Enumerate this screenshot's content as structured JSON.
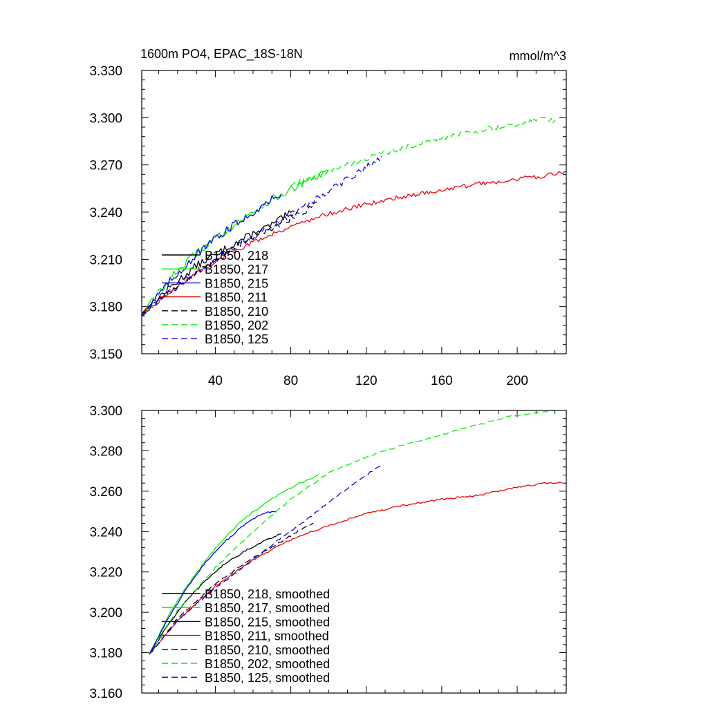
{
  "chart_data": [
    {
      "type": "line",
      "title": "1600m PO4, EPAC_18S-18N",
      "units": "mmol/m^3",
      "xlabel": "",
      "ylabel": "",
      "xlim": [
        1,
        226
      ],
      "ylim": [
        3.15,
        3.33
      ],
      "xticks": [
        40,
        80,
        120,
        160,
        200
      ],
      "xtick_labels": [
        "40",
        "80",
        "120",
        "160",
        "200"
      ],
      "yticks": [
        3.15,
        3.18,
        3.21,
        3.24,
        3.27,
        3.3,
        3.33
      ],
      "ytick_labels": [
        "3.150",
        "3.180",
        "3.210",
        "3.240",
        "3.270",
        "3.300",
        "3.330"
      ],
      "grid": false,
      "legend_position": "lower-left",
      "series": [
        {
          "name": "B1850, 218",
          "color": "#000000",
          "dash": "solid",
          "noise": 0.0024,
          "points": [
            [
              1,
              3.175
            ],
            [
              10,
              3.186
            ],
            [
              20,
              3.196
            ],
            [
              30,
              3.206
            ],
            [
              40,
              3.213
            ],
            [
              50,
              3.22
            ],
            [
              60,
              3.226
            ],
            [
              70,
              3.232
            ],
            [
              78,
              3.238
            ],
            [
              82,
              3.24
            ]
          ]
        },
        {
          "name": "B1850, 217",
          "color": "#00ee00",
          "dash": "solid",
          "noise": 0.0024,
          "points": [
            [
              1,
              3.175
            ],
            [
              10,
              3.189
            ],
            [
              20,
              3.203
            ],
            [
              30,
              3.214
            ],
            [
              40,
              3.223
            ],
            [
              50,
              3.232
            ],
            [
              60,
              3.24
            ],
            [
              70,
              3.248
            ],
            [
              80,
              3.254
            ],
            [
              90,
              3.26
            ],
            [
              100,
              3.266
            ]
          ]
        },
        {
          "name": "B1850, 215",
          "color": "#0000ee",
          "dash": "solid",
          "noise": 0.0024,
          "points": [
            [
              1,
              3.175
            ],
            [
              10,
              3.188
            ],
            [
              20,
              3.201
            ],
            [
              30,
              3.213
            ],
            [
              40,
              3.223
            ],
            [
              50,
              3.232
            ],
            [
              60,
              3.24
            ],
            [
              70,
              3.248
            ],
            [
              75,
              3.252
            ]
          ]
        },
        {
          "name": "B1850, 211",
          "color": "#ee0000",
          "dash": "solid",
          "noise": 0.0014,
          "points": [
            [
              1,
              3.175
            ],
            [
              20,
              3.193
            ],
            [
              40,
              3.209
            ],
            [
              60,
              3.221
            ],
            [
              80,
              3.231
            ],
            [
              100,
              3.239
            ],
            [
              120,
              3.245
            ],
            [
              140,
              3.25
            ],
            [
              160,
              3.254
            ],
            [
              180,
              3.258
            ],
            [
              200,
              3.261
            ],
            [
              220,
              3.264
            ],
            [
              226,
              3.265
            ]
          ]
        },
        {
          "name": "B1850, 210",
          "color": "#000000",
          "dash": "dashed",
          "noise": 0.0024,
          "points": [
            [
              1,
              3.175
            ],
            [
              20,
              3.194
            ],
            [
              40,
              3.21
            ],
            [
              60,
              3.224
            ],
            [
              80,
              3.236
            ],
            [
              90,
              3.243
            ],
            [
              94,
              3.246
            ]
          ]
        },
        {
          "name": "B1850, 202",
          "color": "#00ee00",
          "dash": "dashed",
          "noise": 0.0016,
          "points": [
            [
              80,
              3.257
            ],
            [
              100,
              3.266
            ],
            [
              120,
              3.274
            ],
            [
              140,
              3.281
            ],
            [
              160,
              3.287
            ],
            [
              180,
              3.292
            ],
            [
              200,
              3.296
            ],
            [
              215,
              3.3
            ],
            [
              220,
              3.298
            ]
          ]
        },
        {
          "name": "B1850, 125",
          "color": "#0000ee",
          "dash": "dashed",
          "noise": 0.0022,
          "points": [
            [
              1,
              3.175
            ],
            [
              20,
              3.193
            ],
            [
              40,
              3.21
            ],
            [
              60,
              3.224
            ],
            [
              80,
              3.238
            ],
            [
              100,
              3.253
            ],
            [
              115,
              3.265
            ],
            [
              128,
              3.274
            ]
          ]
        }
      ]
    },
    {
      "type": "line",
      "title": "",
      "xlabel": "",
      "ylabel": "",
      "xlim": [
        1,
        226
      ],
      "ylim": [
        3.16,
        3.3
      ],
      "xticks": [
        40,
        80,
        120,
        160,
        200
      ],
      "xtick_labels": [],
      "yticks": [
        3.16,
        3.18,
        3.2,
        3.22,
        3.24,
        3.26,
        3.28,
        3.3
      ],
      "ytick_labels": [
        "3.160",
        "3.180",
        "3.200",
        "3.220",
        "3.240",
        "3.260",
        "3.280",
        "3.300"
      ],
      "grid": false,
      "legend_position": "lower-left",
      "series": [
        {
          "name": "B1850, 218, smoothed",
          "color": "#000000",
          "dash": "solid",
          "noise": 0.0004,
          "points": [
            [
              5,
              3.179
            ],
            [
              15,
              3.194
            ],
            [
              25,
              3.206
            ],
            [
              35,
              3.216
            ],
            [
              45,
              3.224
            ],
            [
              55,
              3.23
            ],
            [
              65,
              3.235
            ],
            [
              75,
              3.239
            ]
          ]
        },
        {
          "name": "B1850, 217, smoothed",
          "color": "#00ee00",
          "dash": "solid",
          "noise": 0.0004,
          "points": [
            [
              5,
              3.179
            ],
            [
              15,
              3.198
            ],
            [
              25,
              3.213
            ],
            [
              35,
              3.226
            ],
            [
              45,
              3.237
            ],
            [
              55,
              3.246
            ],
            [
              65,
              3.253
            ],
            [
              75,
              3.259
            ],
            [
              85,
              3.264
            ],
            [
              95,
              3.268
            ]
          ]
        },
        {
          "name": "B1850, 215, smoothed",
          "color": "#0000ee",
          "dash": "solid",
          "noise": 0.0004,
          "points": [
            [
              5,
              3.179
            ],
            [
              15,
              3.197
            ],
            [
              25,
              3.212
            ],
            [
              35,
              3.225
            ],
            [
              45,
              3.235
            ],
            [
              55,
              3.243
            ],
            [
              65,
              3.249
            ],
            [
              72,
              3.25
            ]
          ]
        },
        {
          "name": "B1850, 211, smoothed",
          "color": "#ee0000",
          "dash": "solid",
          "noise": 0.0004,
          "points": [
            [
              5,
              3.179
            ],
            [
              20,
              3.196
            ],
            [
              40,
              3.213
            ],
            [
              60,
              3.226
            ],
            [
              80,
              3.236
            ],
            [
              100,
              3.243
            ],
            [
              120,
              3.249
            ],
            [
              140,
              3.253
            ],
            [
              160,
              3.256
            ],
            [
              180,
              3.258
            ],
            [
              200,
              3.262
            ],
            [
              215,
              3.264
            ],
            [
              224,
              3.264
            ]
          ]
        },
        {
          "name": "B1850, 210, smoothed",
          "color": "#000000",
          "dash": "dashed",
          "noise": 0.0004,
          "points": [
            [
              5,
              3.179
            ],
            [
              20,
              3.197
            ],
            [
              40,
              3.214
            ],
            [
              60,
              3.227
            ],
            [
              75,
              3.235
            ],
            [
              85,
              3.241
            ],
            [
              92,
              3.244
            ]
          ]
        },
        {
          "name": "B1850, 202, smoothed",
          "color": "#00ee00",
          "dash": "dashed",
          "noise": 0.0004,
          "points": [
            [
              5,
              3.179
            ],
            [
              20,
              3.201
            ],
            [
              40,
              3.222
            ],
            [
              60,
              3.24
            ],
            [
              80,
              3.256
            ],
            [
              100,
              3.269
            ],
            [
              120,
              3.277
            ],
            [
              140,
              3.283
            ],
            [
              160,
              3.288
            ],
            [
              180,
              3.293
            ],
            [
              195,
              3.297
            ],
            [
              210,
              3.299
            ],
            [
              220,
              3.3
            ]
          ]
        },
        {
          "name": "B1850, 125, smoothed",
          "color": "#0000ee",
          "dash": "dashed",
          "noise": 0.0004,
          "points": [
            [
              5,
              3.179
            ],
            [
              20,
              3.196
            ],
            [
              40,
              3.212
            ],
            [
              60,
              3.226
            ],
            [
              75,
              3.237
            ],
            [
              90,
              3.247
            ],
            [
              105,
              3.258
            ],
            [
              120,
              3.268
            ],
            [
              128,
              3.273
            ]
          ]
        }
      ]
    }
  ]
}
